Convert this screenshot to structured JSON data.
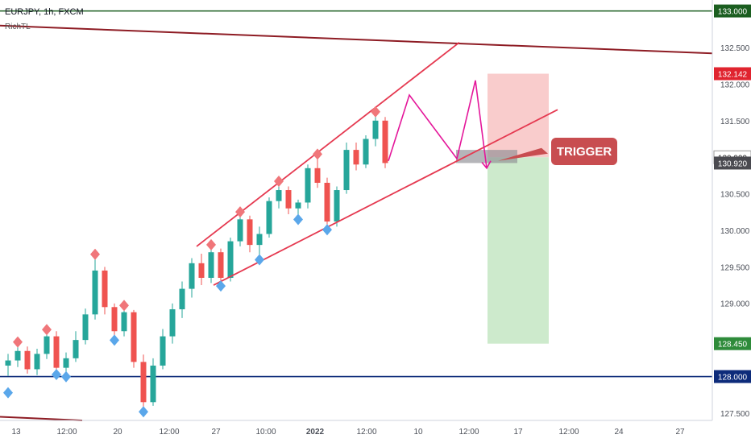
{
  "header": {
    "symbol_line": "EURJPY, 1h, FXCM",
    "indicator": "RichTL"
  },
  "colors": {
    "bull": "#26a69a",
    "bear": "#ef5350",
    "hline_green": "#1b5e20",
    "hline_navy": "#0d2b7a",
    "trendline_dark": "#8e1c24",
    "channel": "#e53950",
    "path": "#e4179a",
    "stop_zone": "#f8c6c6",
    "target_zone": "#c8e8c6",
    "high_marker": "#f0767a",
    "low_marker": "#5aa7ea",
    "trigger_bg": "#c84d50",
    "grid_axis": "#e6e8ee"
  },
  "chart_data": {
    "type": "candlestick",
    "symbol": "EURJPY",
    "timeframe": "1h",
    "source": "FXCM",
    "x_ticks": [
      "13",
      "12:00",
      "20",
      "12:00",
      "27",
      "10:00",
      "2022",
      "12:00",
      "10",
      "12:00",
      "17",
      "12:00",
      "24",
      "27"
    ],
    "y_ticks": [
      "127.500",
      "128.000",
      "128.500",
      "129.000",
      "129.500",
      "130.000",
      "130.500",
      "131.000",
      "131.500",
      "132.000",
      "132.500",
      "133.000"
    ],
    "ylim": [
      127.4,
      133.15
    ],
    "price_labels": [
      {
        "text": "133.000",
        "value": 133.0,
        "kind": "level-green"
      },
      {
        "text": "132.142",
        "value": 132.142,
        "kind": "stop"
      },
      {
        "text": "130.999",
        "value": 130.999,
        "kind": "entry"
      },
      {
        "text": "130.920",
        "value": 130.92,
        "kind": "last"
      },
      {
        "text": "128.450",
        "value": 128.45,
        "kind": "target"
      },
      {
        "text": "128.000",
        "value": 128.0,
        "kind": "level-navy"
      }
    ],
    "horizontal_levels": [
      133.0,
      128.0
    ],
    "trigger_label": "TRIGGER",
    "risk_reward": {
      "stop": 132.142,
      "entry": 130.999,
      "target": 128.45
    },
    "trigger_zone": [
      130.92,
      131.1
    ],
    "swing_highs": [
      128.45,
      128.62,
      129.65,
      128.95,
      129.78,
      130.23,
      130.65,
      131.02,
      131.6
    ],
    "swing_lows": [
      127.8,
      128.05,
      128.02,
      128.52,
      127.54,
      129.26,
      129.62,
      130.17,
      130.03
    ],
    "candles_ohlc": [
      [
        128.15,
        128.31,
        128.01,
        128.22
      ],
      [
        128.22,
        128.43,
        128.13,
        128.35
      ],
      [
        128.35,
        128.41,
        128.04,
        128.1
      ],
      [
        128.1,
        128.38,
        128.02,
        128.31
      ],
      [
        128.31,
        128.62,
        128.24,
        128.55
      ],
      [
        128.55,
        128.62,
        128.05,
        128.12
      ],
      [
        128.12,
        128.33,
        128.05,
        128.25
      ],
      [
        128.25,
        128.62,
        128.2,
        128.5
      ],
      [
        128.5,
        128.93,
        128.44,
        128.85
      ],
      [
        128.85,
        129.65,
        128.78,
        129.45
      ],
      [
        129.45,
        129.5,
        128.85,
        128.95
      ],
      [
        128.95,
        129.0,
        128.5,
        128.62
      ],
      [
        128.62,
        128.95,
        128.55,
        128.88
      ],
      [
        128.88,
        128.91,
        128.12,
        128.2
      ],
      [
        128.2,
        128.3,
        127.54,
        127.65
      ],
      [
        127.65,
        128.25,
        127.6,
        128.15
      ],
      [
        128.15,
        128.65,
        128.1,
        128.55
      ],
      [
        128.55,
        129.0,
        128.45,
        128.92
      ],
      [
        128.92,
        129.3,
        128.8,
        129.2
      ],
      [
        129.2,
        129.62,
        129.08,
        129.55
      ],
      [
        129.55,
        129.68,
        129.25,
        129.35
      ],
      [
        129.35,
        129.78,
        129.28,
        129.7
      ],
      [
        129.7,
        129.75,
        129.26,
        129.35
      ],
      [
        129.35,
        129.9,
        129.3,
        129.85
      ],
      [
        129.85,
        130.23,
        129.78,
        130.15
      ],
      [
        130.15,
        130.2,
        129.7,
        129.8
      ],
      [
        129.8,
        130.05,
        129.62,
        129.95
      ],
      [
        129.95,
        130.45,
        129.9,
        130.4
      ],
      [
        130.4,
        130.65,
        130.3,
        130.55
      ],
      [
        130.55,
        130.6,
        130.22,
        130.3
      ],
      [
        130.3,
        130.42,
        130.17,
        130.38
      ],
      [
        130.38,
        130.9,
        130.3,
        130.85
      ],
      [
        130.85,
        131.02,
        130.58,
        130.65
      ],
      [
        130.65,
        130.72,
        130.03,
        130.12
      ],
      [
        130.12,
        130.6,
        130.05,
        130.55
      ],
      [
        130.55,
        131.2,
        130.5,
        131.1
      ],
      [
        131.1,
        131.2,
        130.82,
        130.9
      ],
      [
        130.9,
        131.3,
        130.85,
        131.25
      ],
      [
        131.25,
        131.6,
        131.15,
        131.5
      ],
      [
        131.5,
        131.55,
        130.85,
        130.92
      ]
    ]
  }
}
